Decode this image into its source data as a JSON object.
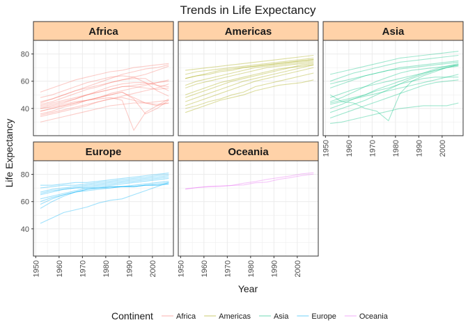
{
  "chart_data": {
    "type": "line",
    "title": "Trends in Life Expectancy",
    "xlabel": "Year",
    "ylabel": "Life Expectancy",
    "xlim": [
      1949,
      2009
    ],
    "ylim": [
      20,
      90
    ],
    "x_ticks": [
      1950,
      1960,
      1970,
      1980,
      1990,
      2000
    ],
    "y_ticks": [
      40,
      60,
      80
    ],
    "x": [
      1952,
      1957,
      1962,
      1967,
      1972,
      1977,
      1982,
      1987,
      1992,
      1997,
      2002,
      2007
    ],
    "grid": true,
    "facet_layout": "wrap, 3 columns",
    "legend": {
      "title": "Continent",
      "position": "bottom",
      "entries": [
        "Africa",
        "Americas",
        "Asia",
        "Europe",
        "Oceania"
      ]
    },
    "facets": [
      {
        "name": "Africa",
        "color": "#F8766D",
        "series": [
          [
            52,
            55,
            58,
            61,
            63,
            65,
            67,
            68,
            70,
            71,
            72,
            73
          ],
          [
            43,
            45,
            48,
            51,
            54,
            56,
            59,
            61,
            63,
            65,
            68,
            71
          ],
          [
            38,
            40,
            42,
            44,
            46,
            48,
            50,
            52,
            48,
            44,
            42,
            44
          ],
          [
            41,
            43,
            45,
            47,
            50,
            53,
            56,
            58,
            59,
            59,
            57,
            56
          ],
          [
            35,
            37,
            39,
            41,
            43,
            45,
            47,
            48,
            46,
            44,
            43,
            44
          ],
          [
            40,
            42,
            44,
            47,
            50,
            52,
            54,
            56,
            56,
            55,
            54,
            55
          ],
          [
            30,
            32,
            34,
            36,
            38,
            40,
            42,
            43,
            44,
            44,
            45,
            46
          ],
          [
            44,
            47,
            50,
            53,
            55,
            57,
            59,
            61,
            62,
            62,
            57,
            53
          ],
          [
            38,
            40,
            42,
            44,
            46,
            48,
            50,
            52,
            47,
            36,
            40,
            46
          ],
          [
            48,
            50,
            53,
            56,
            59,
            61,
            63,
            64,
            63,
            59,
            53,
            49
          ],
          [
            34,
            36,
            38,
            40,
            42,
            45,
            47,
            49,
            51,
            53,
            55,
            58
          ],
          [
            40,
            41,
            43,
            45,
            46,
            47,
            48,
            46,
            24,
            37,
            42,
            47
          ],
          [
            45,
            47,
            50,
            53,
            56,
            59,
            62,
            65,
            67,
            69,
            70,
            72
          ],
          [
            36,
            38,
            41,
            43,
            46,
            48,
            51,
            53,
            55,
            57,
            59,
            61
          ],
          [
            42,
            44,
            46,
            48,
            50,
            52,
            54,
            56,
            57,
            58,
            59,
            60
          ]
        ]
      },
      {
        "name": "Americas",
        "color": "#A3A500",
        "series": [
          [
            68,
            69,
            70,
            71,
            72,
            73,
            74,
            75,
            76,
            77,
            78,
            79
          ],
          [
            62,
            64,
            65,
            67,
            68,
            70,
            71,
            72,
            73,
            74,
            75,
            76
          ],
          [
            37,
            40,
            43,
            46,
            48,
            50,
            53,
            55,
            57,
            58,
            59,
            61
          ],
          [
            45,
            48,
            51,
            54,
            57,
            60,
            62,
            64,
            66,
            68,
            70,
            72
          ],
          [
            40,
            42,
            45,
            47,
            50,
            52,
            56,
            58,
            60,
            62,
            64,
            66
          ],
          [
            55,
            58,
            60,
            62,
            64,
            66,
            68,
            70,
            71,
            72,
            73,
            74
          ],
          [
            50,
            53,
            56,
            59,
            61,
            63,
            65,
            67,
            69,
            70,
            71,
            72
          ],
          [
            57,
            60,
            62,
            64,
            66,
            68,
            70,
            71,
            72,
            73,
            74,
            75
          ],
          [
            48,
            51,
            54,
            57,
            60,
            62,
            64,
            66,
            68,
            70,
            72,
            73
          ],
          [
            62,
            64,
            66,
            68,
            69,
            70,
            71,
            72,
            73,
            74,
            75,
            76
          ],
          [
            42,
            45,
            48,
            51,
            54,
            57,
            60,
            62,
            64,
            66,
            68,
            70
          ],
          [
            65,
            67,
            68,
            69,
            70,
            71,
            72,
            73,
            74,
            75,
            76,
            77
          ]
        ]
      },
      {
        "name": "Asia",
        "color": "#00BF7D",
        "series": [
          [
            65,
            67,
            69,
            71,
            73,
            75,
            77,
            78,
            79,
            80,
            81,
            82
          ],
          [
            60,
            63,
            66,
            68,
            70,
            72,
            74,
            75,
            76,
            77,
            78,
            79
          ],
          [
            37,
            40,
            43,
            46,
            50,
            54,
            58,
            62,
            65,
            68,
            70,
            72
          ],
          [
            29,
            30,
            32,
            34,
            36,
            38,
            40,
            41,
            42,
            42,
            42,
            44
          ],
          [
            50,
            45,
            44,
            40,
            38,
            31,
            51,
            60,
            64,
            67,
            70,
            72
          ],
          [
            45,
            48,
            52,
            56,
            60,
            63,
            66,
            68,
            69,
            70,
            71,
            72
          ],
          [
            44,
            46,
            48,
            50,
            53,
            55,
            58,
            60,
            62,
            63,
            63,
            63
          ],
          [
            40,
            43,
            47,
            50,
            54,
            57,
            60,
            63,
            66,
            69,
            71,
            73
          ],
          [
            55,
            58,
            61,
            64,
            66,
            68,
            69,
            70,
            71,
            72,
            73,
            74
          ],
          [
            48,
            51,
            54,
            56,
            58,
            60,
            62,
            64,
            66,
            68,
            70,
            71
          ],
          [
            43,
            45,
            47,
            49,
            51,
            53,
            55,
            57,
            59,
            61,
            63,
            65
          ],
          [
            33,
            36,
            39,
            42,
            45,
            48,
            51,
            54,
            57,
            59,
            60,
            61
          ],
          [
            58,
            60,
            62,
            64,
            66,
            68,
            70,
            71,
            72,
            73,
            74,
            75
          ]
        ]
      },
      {
        "name": "Europe",
        "color": "#00B0F6",
        "series": [
          [
            72,
            72,
            73,
            74,
            74,
            75,
            76,
            77,
            78,
            79,
            80,
            81
          ],
          [
            70,
            71,
            72,
            72,
            73,
            74,
            75,
            76,
            77,
            78,
            79,
            80
          ],
          [
            44,
            48,
            52,
            54,
            56,
            59,
            61,
            62,
            65,
            68,
            71,
            74
          ],
          [
            55,
            60,
            64,
            67,
            69,
            70,
            71,
            71,
            72,
            73,
            74,
            75
          ],
          [
            60,
            63,
            65,
            67,
            69,
            70,
            71,
            71,
            71,
            72,
            72,
            73
          ],
          [
            65,
            67,
            69,
            70,
            70,
            70,
            70,
            71,
            71,
            72,
            72,
            73
          ],
          [
            66,
            68,
            69,
            70,
            71,
            72,
            73,
            74,
            75,
            76,
            77,
            78
          ],
          [
            58,
            62,
            65,
            67,
            68,
            69,
            70,
            71,
            71,
            72,
            73,
            74
          ],
          [
            67,
            69,
            70,
            71,
            72,
            73,
            74,
            75,
            76,
            77,
            78,
            79
          ],
          [
            62,
            64,
            66,
            68,
            70,
            71,
            72,
            73,
            74,
            75,
            76,
            77
          ]
        ]
      },
      {
        "name": "Oceania",
        "color": "#E76BF3",
        "series": [
          [
            69.1,
            70.3,
            70.9,
            71.1,
            71.9,
            73.5,
            74.7,
            76.3,
            77.6,
            78.8,
            80.4,
            81.2
          ],
          [
            69.4,
            70.3,
            71.2,
            71.5,
            71.9,
            72.2,
            73.8,
            74.3,
            76.3,
            77.6,
            79.1,
            80.2
          ]
        ]
      }
    ]
  }
}
